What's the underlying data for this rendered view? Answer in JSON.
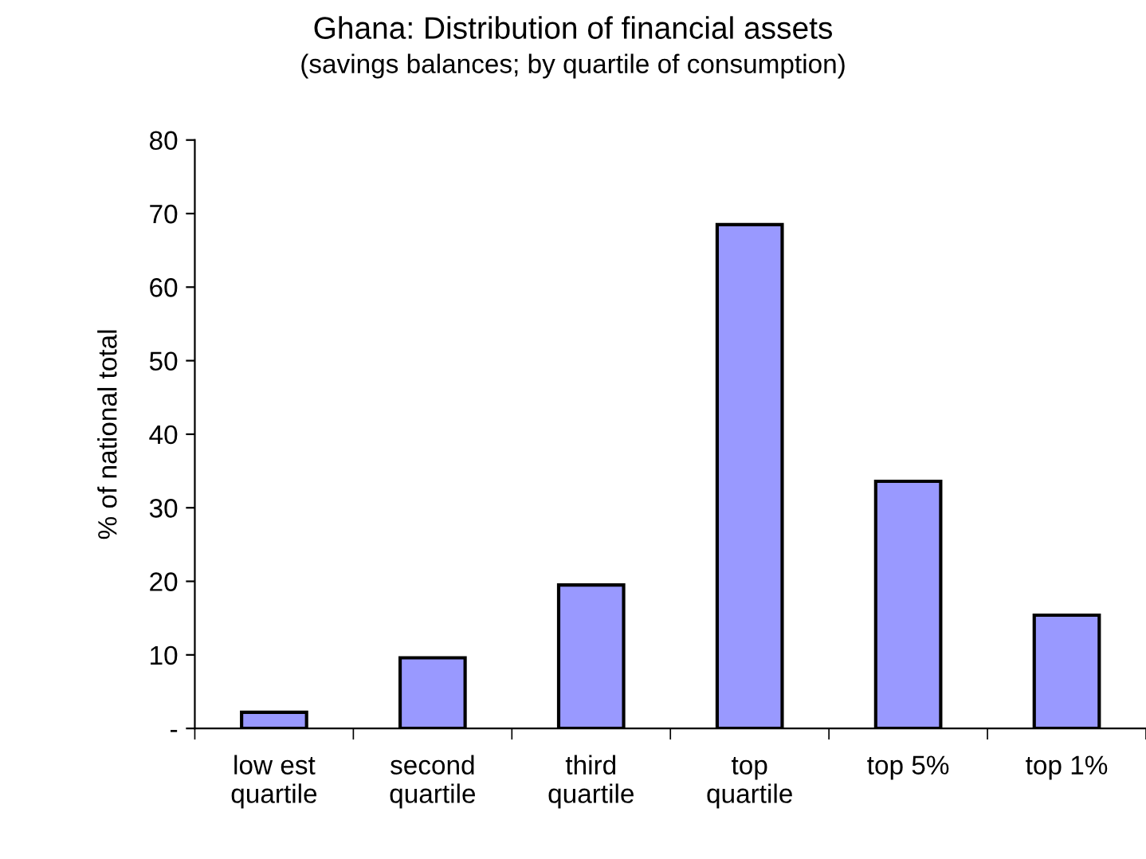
{
  "chart_data": {
    "type": "bar",
    "title": "Ghana: Distribution of financial assets",
    "subtitle": "(savings balances; by quartile of consumption)",
    "ylabel": "% of national total",
    "categories": [
      "low est\nquartile",
      "second\nquartile",
      "third\nquartile",
      "top\nquartile",
      "top 5%",
      "top 1%"
    ],
    "values": [
      2.2,
      9.6,
      19.5,
      68.5,
      33.6,
      15.4
    ],
    "color": "#9999ff",
    "ylim": [
      0,
      80
    ],
    "yticks": [
      {
        "value": 0,
        "label": "-"
      },
      10,
      20,
      30,
      40,
      50,
      60,
      70,
      80
    ],
    "grid": false
  }
}
